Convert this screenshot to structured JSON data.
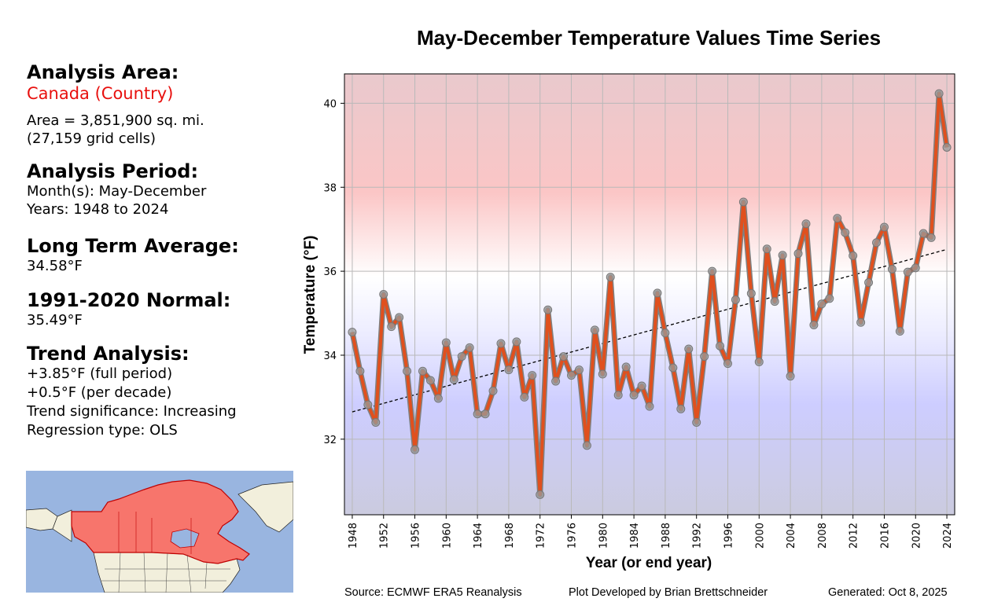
{
  "side": {
    "analysis_area_header": "Analysis Area:",
    "area_name": "Canada (Country)",
    "area_line1": "Area = 3,851,900 sq. mi.",
    "area_line2": "(27,159 grid cells)",
    "period_header": "Analysis Period:",
    "months": "Month(s): May-December",
    "years": "Years: 1948 to 2024",
    "lta_header": "Long Term Average:",
    "lta_value": "34.58°F",
    "normal_header": "1991-2020 Normal:",
    "normal_value": "35.49°F",
    "trend_header": "Trend Analysis:",
    "trend_full": "+3.85°F (full period)",
    "trend_decade": "+0.5°F (per decade)",
    "trend_sig": "Trend significance: Increasing",
    "regression": "Regression type: OLS"
  },
  "footer": {
    "source": "Source: ECMWF ERA5 Reanalysis",
    "developer": "Plot Developed by Brian Brettschneider",
    "generated": "Generated: Oct 8, 2025"
  },
  "map": {
    "ocean_color": "#99b5e0",
    "land_color": "#f2efdc",
    "highlight_color": "#f7756c",
    "border_color": "#c00000"
  },
  "chart_data": {
    "type": "line",
    "title": "May-December Temperature Values Time Series",
    "xlabel": "Year (or end year)",
    "ylabel": "Temperature (°F)",
    "xlim": [
      1947,
      2025
    ],
    "ylim": [
      30.2,
      40.7
    ],
    "xticks": [
      1948,
      1952,
      1956,
      1960,
      1964,
      1968,
      1972,
      1976,
      1980,
      1984,
      1988,
      1992,
      1996,
      2000,
      2004,
      2008,
      2012,
      2016,
      2020,
      2024
    ],
    "yticks": [
      32,
      34,
      36,
      38,
      40
    ],
    "grid": true,
    "background": "gradient: red (warm, top) to blue (cool, bottom)",
    "line_color": "#e0501e",
    "marker_color": "#9a9a9a",
    "trend_line": {
      "style": "dashed",
      "start": [
        1948,
        32.65
      ],
      "end": [
        2024,
        36.52
      ]
    },
    "x": [
      1948,
      1949,
      1950,
      1951,
      1952,
      1953,
      1954,
      1955,
      1956,
      1957,
      1958,
      1959,
      1960,
      1961,
      1962,
      1963,
      1964,
      1965,
      1966,
      1967,
      1968,
      1969,
      1970,
      1971,
      1972,
      1973,
      1974,
      1975,
      1976,
      1977,
      1978,
      1979,
      1980,
      1981,
      1982,
      1983,
      1984,
      1985,
      1986,
      1987,
      1988,
      1989,
      1990,
      1991,
      1992,
      1993,
      1994,
      1995,
      1996,
      1997,
      1998,
      1999,
      2000,
      2001,
      2002,
      2003,
      2004,
      2005,
      2006,
      2007,
      2008,
      2009,
      2010,
      2011,
      2012,
      2013,
      2014,
      2015,
      2016,
      2017,
      2018,
      2019,
      2020,
      2021,
      2022,
      2023,
      2024
    ],
    "values": [
      34.55,
      33.62,
      32.82,
      32.4,
      35.45,
      34.68,
      34.9,
      33.62,
      31.75,
      33.62,
      33.4,
      32.97,
      34.3,
      33.42,
      33.97,
      34.18,
      32.6,
      32.6,
      33.15,
      34.28,
      33.65,
      34.32,
      33.0,
      33.52,
      30.68,
      35.08,
      33.38,
      33.97,
      33.52,
      33.65,
      31.85,
      34.6,
      33.55,
      35.86,
      33.05,
      33.72,
      33.05,
      33.27,
      32.78,
      35.48,
      34.53,
      33.7,
      32.72,
      34.15,
      32.4,
      33.97,
      36.0,
      34.22,
      33.8,
      35.32,
      37.65,
      35.47,
      33.84,
      36.53,
      35.28,
      36.38,
      33.5,
      36.42,
      37.13,
      34.72,
      35.22,
      35.35,
      37.26,
      36.92,
      36.37,
      34.78,
      35.73,
      36.68,
      37.05,
      36.05,
      34.57,
      35.98,
      36.08,
      36.9,
      36.8,
      40.23,
      38.95
    ]
  }
}
